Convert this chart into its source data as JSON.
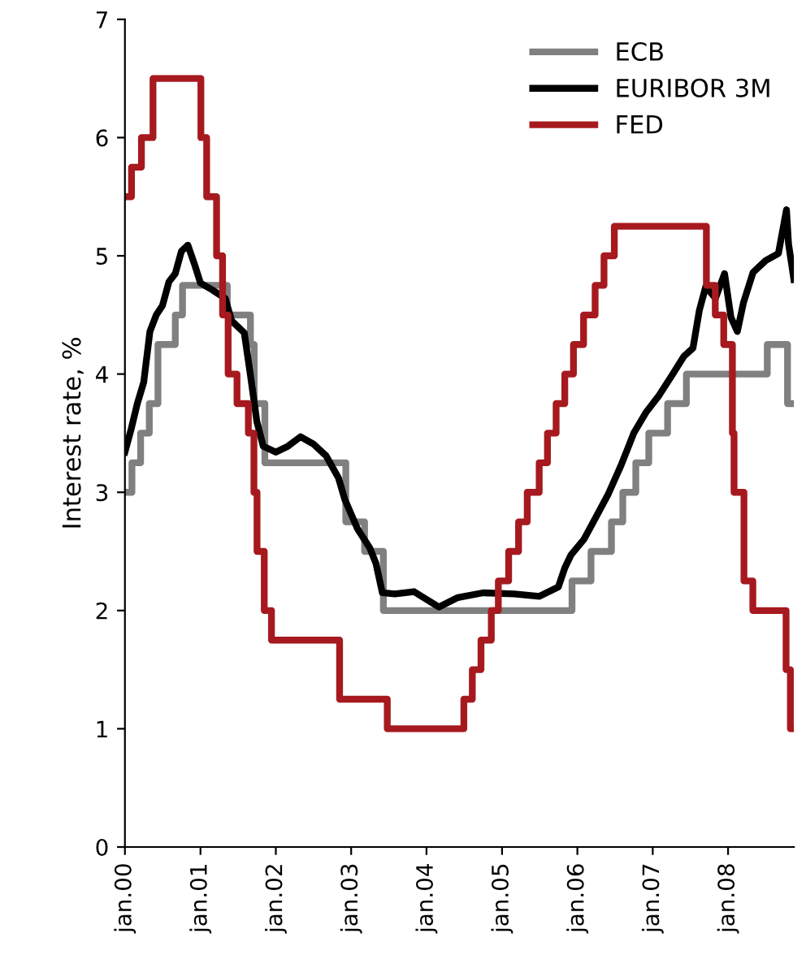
{
  "chart_data": {
    "type": "line",
    "ylabel": "Interest rate, %",
    "ylim": [
      0,
      7
    ],
    "yticks": [
      0,
      1,
      2,
      3,
      4,
      5,
      6,
      7
    ],
    "xlim": [
      "2000-01-01",
      "2008-11-15"
    ],
    "xticks": [
      {
        "value": "2000-01-01",
        "label": "jan.00"
      },
      {
        "value": "2001-01-01",
        "label": "jan.01"
      },
      {
        "value": "2002-01-01",
        "label": "jan.02"
      },
      {
        "value": "2003-01-01",
        "label": "jan.03"
      },
      {
        "value": "2004-01-01",
        "label": "jan.04"
      },
      {
        "value": "2005-01-01",
        "label": "jan.05"
      },
      {
        "value": "2006-01-01",
        "label": "jan.06"
      },
      {
        "value": "2007-01-01",
        "label": "jan.07"
      },
      {
        "value": "2008-01-01",
        "label": "jan.08"
      }
    ],
    "legend": "top right",
    "grid": false,
    "series": [
      {
        "name": "ECB",
        "type": "step",
        "color": "#808080",
        "x": [
          "2000-01-01",
          "2000-02-04",
          "2000-03-17",
          "2000-04-28",
          "2000-06-09",
          "2000-09-01",
          "2000-10-06",
          "2001-05-11",
          "2001-08-31",
          "2001-09-18",
          "2001-11-09",
          "2002-12-06",
          "2003-03-07",
          "2003-06-06",
          "2005-12-06",
          "2006-03-08",
          "2006-06-15",
          "2006-08-09",
          "2006-10-11",
          "2006-12-13",
          "2007-03-14",
          "2007-06-13",
          "2008-07-09",
          "2008-10-15",
          "2008-11-15"
        ],
        "values": [
          3.0,
          3.25,
          3.5,
          3.75,
          4.25,
          4.5,
          4.75,
          4.5,
          4.25,
          3.75,
          3.25,
          2.75,
          2.5,
          2.0,
          2.25,
          2.5,
          2.75,
          3.0,
          3.25,
          3.5,
          3.75,
          4.0,
          4.25,
          3.75,
          3.75
        ]
      },
      {
        "name": "EURIBOR 3M",
        "color": "#000000",
        "x": [
          "2000-01-01",
          "2000-02-01",
          "2000-03-01",
          "2000-04-01",
          "2000-05-01",
          "2000-06-01",
          "2000-07-01",
          "2000-08-01",
          "2000-09-01",
          "2000-10-01",
          "2000-11-01",
          "2000-12-01",
          "2001-01-01",
          "2001-03-01",
          "2001-05-01",
          "2001-06-01",
          "2001-08-01",
          "2001-09-01",
          "2001-10-01",
          "2001-11-01",
          "2002-01-01",
          "2002-03-01",
          "2002-05-01",
          "2002-07-01",
          "2002-09-01",
          "2002-11-01",
          "2002-12-01",
          "2003-02-01",
          "2003-04-01",
          "2003-05-01",
          "2003-06-01",
          "2003-08-01",
          "2003-11-01",
          "2004-03-01",
          "2004-06-01",
          "2004-10-01",
          "2005-03-01",
          "2005-07-01",
          "2005-10-01",
          "2005-11-01",
          "2005-12-01",
          "2006-02-01",
          "2006-04-01",
          "2006-06-01",
          "2006-08-01",
          "2006-10-01",
          "2006-12-01",
          "2007-02-01",
          "2007-04-01",
          "2007-06-01",
          "2007-07-15",
          "2007-08-15",
          "2007-09-15",
          "2007-11-01",
          "2007-12-15",
          "2008-01-15",
          "2008-02-15",
          "2008-03-15",
          "2008-05-01",
          "2008-07-01",
          "2008-09-01",
          "2008-10-10",
          "2008-10-20",
          "2008-11-15"
        ],
        "values": [
          3.34,
          3.54,
          3.75,
          3.93,
          4.36,
          4.5,
          4.58,
          4.78,
          4.85,
          5.04,
          5.09,
          4.94,
          4.77,
          4.71,
          4.64,
          4.45,
          4.35,
          3.98,
          3.6,
          3.39,
          3.34,
          3.39,
          3.47,
          3.41,
          3.31,
          3.12,
          2.94,
          2.69,
          2.53,
          2.4,
          2.15,
          2.14,
          2.16,
          2.03,
          2.11,
          2.15,
          2.14,
          2.12,
          2.2,
          2.36,
          2.47,
          2.6,
          2.79,
          2.99,
          3.23,
          3.5,
          3.68,
          3.82,
          3.98,
          4.15,
          4.22,
          4.54,
          4.74,
          4.64,
          4.85,
          4.48,
          4.36,
          4.6,
          4.86,
          4.96,
          5.02,
          5.39,
          5.1,
          4.8
        ]
      },
      {
        "name": "FED",
        "type": "step",
        "color": "#a6191e",
        "x": [
          "2000-01-01",
          "2000-02-02",
          "2000-03-21",
          "2000-05-16",
          "2001-01-03",
          "2001-01-31",
          "2001-03-20",
          "2001-04-18",
          "2001-05-15",
          "2001-06-27",
          "2001-08-21",
          "2001-09-17",
          "2001-10-02",
          "2001-11-06",
          "2001-12-11",
          "2002-11-06",
          "2003-06-25",
          "2004-06-30",
          "2004-08-10",
          "2004-09-21",
          "2004-11-10",
          "2004-12-14",
          "2005-02-02",
          "2005-03-22",
          "2005-05-03",
          "2005-06-30",
          "2005-08-09",
          "2005-09-20",
          "2005-11-01",
          "2005-12-13",
          "2006-01-31",
          "2006-03-28",
          "2006-05-10",
          "2006-06-29",
          "2007-09-18",
          "2007-10-31",
          "2007-12-11",
          "2008-01-22",
          "2008-01-30",
          "2008-03-18",
          "2008-04-30",
          "2008-10-08",
          "2008-10-29",
          "2008-11-15"
        ],
        "values": [
          5.5,
          5.75,
          6.0,
          6.5,
          6.0,
          5.5,
          5.0,
          4.5,
          4.0,
          3.75,
          3.5,
          3.0,
          2.5,
          2.0,
          1.75,
          1.25,
          1.0,
          1.25,
          1.5,
          1.75,
          2.0,
          2.25,
          2.5,
          2.75,
          3.0,
          3.25,
          3.5,
          3.75,
          4.0,
          4.25,
          4.5,
          4.75,
          5.0,
          5.25,
          4.75,
          4.5,
          4.25,
          3.5,
          3.0,
          2.25,
          2.0,
          1.5,
          1.0,
          1.0
        ]
      }
    ]
  }
}
